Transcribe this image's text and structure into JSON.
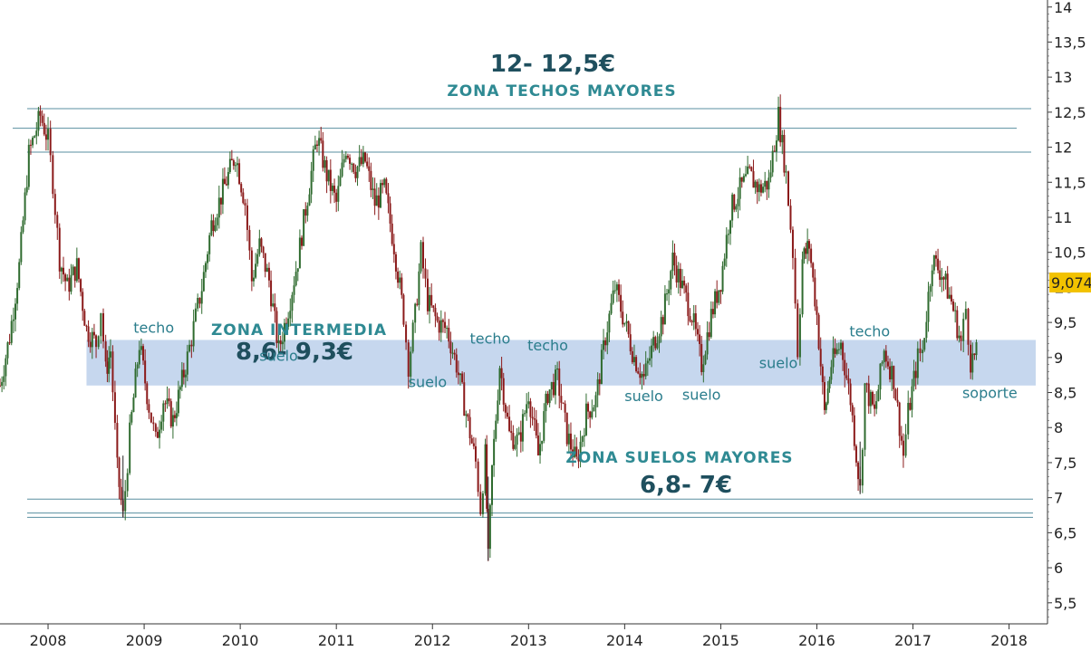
{
  "chart_data": {
    "type": "candlestick",
    "xlabel": "",
    "ylabel": "",
    "x_ticks": [
      "2008",
      "2009",
      "2010",
      "2011",
      "2012",
      "2013",
      "2014",
      "2015",
      "2016",
      "2017",
      "2018"
    ],
    "y_ticks": [
      "5,5",
      "6",
      "6,5",
      "7",
      "7,5",
      "8",
      "8,5",
      "9",
      "9,5",
      "10",
      "10,5",
      "11",
      "11,5",
      "12",
      "12,5",
      "13",
      "13,5",
      "14"
    ],
    "y_tick_values": [
      5.5,
      6,
      6.5,
      7,
      7.5,
      8,
      8.5,
      9,
      9.5,
      10,
      10.5,
      11,
      11.5,
      12,
      12.5,
      13,
      13.5,
      14
    ],
    "bold_ticks": [
      "10"
    ],
    "ylim": [
      5.2,
      14.1
    ],
    "xlim": [
      2007.5,
      2018.4
    ],
    "last_price": "9,074",
    "last_price_value": 9.074,
    "colors": {
      "up": "#2f6b2f",
      "down": "#8b1a1a",
      "band": "#c6d7ee",
      "line": "#5a8fa0",
      "price_tag": "#f2c200"
    },
    "resistance_lines": [
      12.55,
      12.27,
      11.93
    ],
    "support_lines": [
      6.98,
      6.78,
      6.72
    ],
    "intermediate_band": [
      8.6,
      9.25
    ],
    "zones": {
      "top": {
        "value": "12- 12,5€",
        "title": "ZONA TECHOS MAYORES"
      },
      "middle": {
        "title": "ZONA INTERMEDIA",
        "value": "8,6- 9,3€"
      },
      "bottom": {
        "title": "ZONA SUELOS MAYORES",
        "value": "6,8- 7€"
      }
    },
    "annotations": [
      {
        "text": "techo",
        "x": 2009.1,
        "y": 9.35
      },
      {
        "text": "suelo",
        "x": 2010.4,
        "y": 8.95
      },
      {
        "text": "suelo",
        "x": 2011.95,
        "y": 8.58
      },
      {
        "text": "techo",
        "x": 2012.6,
        "y": 9.2
      },
      {
        "text": "techo",
        "x": 2013.2,
        "y": 9.1
      },
      {
        "text": "suelo",
        "x": 2014.2,
        "y": 8.38
      },
      {
        "text": "suelo",
        "x": 2014.8,
        "y": 8.4
      },
      {
        "text": "suelo",
        "x": 2015.6,
        "y": 8.85
      },
      {
        "text": "techo",
        "x": 2016.55,
        "y": 9.3
      },
      {
        "text": "soporte",
        "x": 2017.8,
        "y": 8.42
      }
    ],
    "series": [
      {
        "values": [
          [
            2007.5,
            8.6
          ],
          [
            2007.6,
            9.3
          ],
          [
            2007.7,
            10.3
          ],
          [
            2007.8,
            11.9
          ],
          [
            2007.92,
            12.45
          ],
          [
            2008.0,
            12.1
          ],
          [
            2008.05,
            11.5
          ],
          [
            2008.12,
            10.4
          ],
          [
            2008.2,
            10.0
          ],
          [
            2008.3,
            10.3
          ],
          [
            2008.4,
            9.4
          ],
          [
            2008.5,
            9.2
          ],
          [
            2008.55,
            9.7
          ],
          [
            2008.6,
            8.8
          ],
          [
            2008.65,
            9.1
          ],
          [
            2008.72,
            7.4
          ],
          [
            2008.78,
            6.72
          ],
          [
            2008.85,
            7.9
          ],
          [
            2008.95,
            9.2
          ],
          [
            2009.05,
            8.3
          ],
          [
            2009.12,
            7.8
          ],
          [
            2009.2,
            8.4
          ],
          [
            2009.3,
            8.1
          ],
          [
            2009.45,
            9.0
          ],
          [
            2009.6,
            10.0
          ],
          [
            2009.7,
            10.9
          ],
          [
            2009.8,
            11.3
          ],
          [
            2009.95,
            11.9
          ],
          [
            2010.05,
            11.2
          ],
          [
            2010.12,
            10.1
          ],
          [
            2010.2,
            10.6
          ],
          [
            2010.3,
            10.1
          ],
          [
            2010.4,
            9.1
          ],
          [
            2010.5,
            9.7
          ],
          [
            2010.6,
            10.4
          ],
          [
            2010.7,
            11.3
          ],
          [
            2010.8,
            12.15
          ],
          [
            2010.9,
            11.6
          ],
          [
            2011.0,
            11.2
          ],
          [
            2011.1,
            12.0
          ],
          [
            2011.2,
            11.7
          ],
          [
            2011.3,
            11.8
          ],
          [
            2011.4,
            11.2
          ],
          [
            2011.5,
            11.4
          ],
          [
            2011.6,
            10.6
          ],
          [
            2011.7,
            9.6
          ],
          [
            2011.75,
            8.9
          ],
          [
            2011.82,
            9.6
          ],
          [
            2011.88,
            10.5
          ],
          [
            2011.95,
            9.8
          ],
          [
            2012.05,
            9.5
          ],
          [
            2012.15,
            9.4
          ],
          [
            2012.25,
            8.9
          ],
          [
            2012.35,
            8.2
          ],
          [
            2012.45,
            7.5
          ],
          [
            2012.5,
            6.85
          ],
          [
            2012.55,
            7.6
          ],
          [
            2012.58,
            6.1
          ],
          [
            2012.62,
            7.4
          ],
          [
            2012.7,
            8.9
          ],
          [
            2012.8,
            7.9
          ],
          [
            2012.9,
            7.8
          ],
          [
            2013.0,
            8.5
          ],
          [
            2013.1,
            7.6
          ],
          [
            2013.2,
            8.5
          ],
          [
            2013.3,
            8.7
          ],
          [
            2013.4,
            7.9
          ],
          [
            2013.5,
            7.5
          ],
          [
            2013.6,
            8.2
          ],
          [
            2013.7,
            8.4
          ],
          [
            2013.8,
            9.3
          ],
          [
            2013.9,
            10.0
          ],
          [
            2014.0,
            9.5
          ],
          [
            2014.1,
            9.0
          ],
          [
            2014.2,
            8.7
          ],
          [
            2014.3,
            9.2
          ],
          [
            2014.4,
            9.6
          ],
          [
            2014.5,
            10.4
          ],
          [
            2014.6,
            10.0
          ],
          [
            2014.7,
            9.6
          ],
          [
            2014.8,
            8.9
          ],
          [
            2014.9,
            9.6
          ],
          [
            2015.0,
            10.1
          ],
          [
            2015.1,
            11.1
          ],
          [
            2015.2,
            11.4
          ],
          [
            2015.3,
            11.6
          ],
          [
            2015.4,
            11.4
          ],
          [
            2015.5,
            11.5
          ],
          [
            2015.6,
            12.45
          ],
          [
            2015.68,
            11.6
          ],
          [
            2015.75,
            10.5
          ],
          [
            2015.8,
            9.1
          ],
          [
            2015.85,
            10.4
          ],
          [
            2015.92,
            10.6
          ],
          [
            2016.0,
            9.6
          ],
          [
            2016.08,
            8.2
          ],
          [
            2016.15,
            8.9
          ],
          [
            2016.25,
            9.2
          ],
          [
            2016.35,
            8.4
          ],
          [
            2016.45,
            7.1
          ],
          [
            2016.5,
            8.6
          ],
          [
            2016.6,
            8.2
          ],
          [
            2016.7,
            9.1
          ],
          [
            2016.8,
            8.7
          ],
          [
            2016.9,
            7.6
          ],
          [
            2016.95,
            8.2
          ],
          [
            2017.05,
            9.0
          ],
          [
            2017.1,
            9.1
          ],
          [
            2017.2,
            10.4
          ],
          [
            2017.3,
            10.2
          ],
          [
            2017.4,
            9.8
          ],
          [
            2017.5,
            9.2
          ],
          [
            2017.55,
            9.7
          ],
          [
            2017.6,
            8.95
          ],
          [
            2017.68,
            9.074
          ]
        ]
      }
    ]
  }
}
